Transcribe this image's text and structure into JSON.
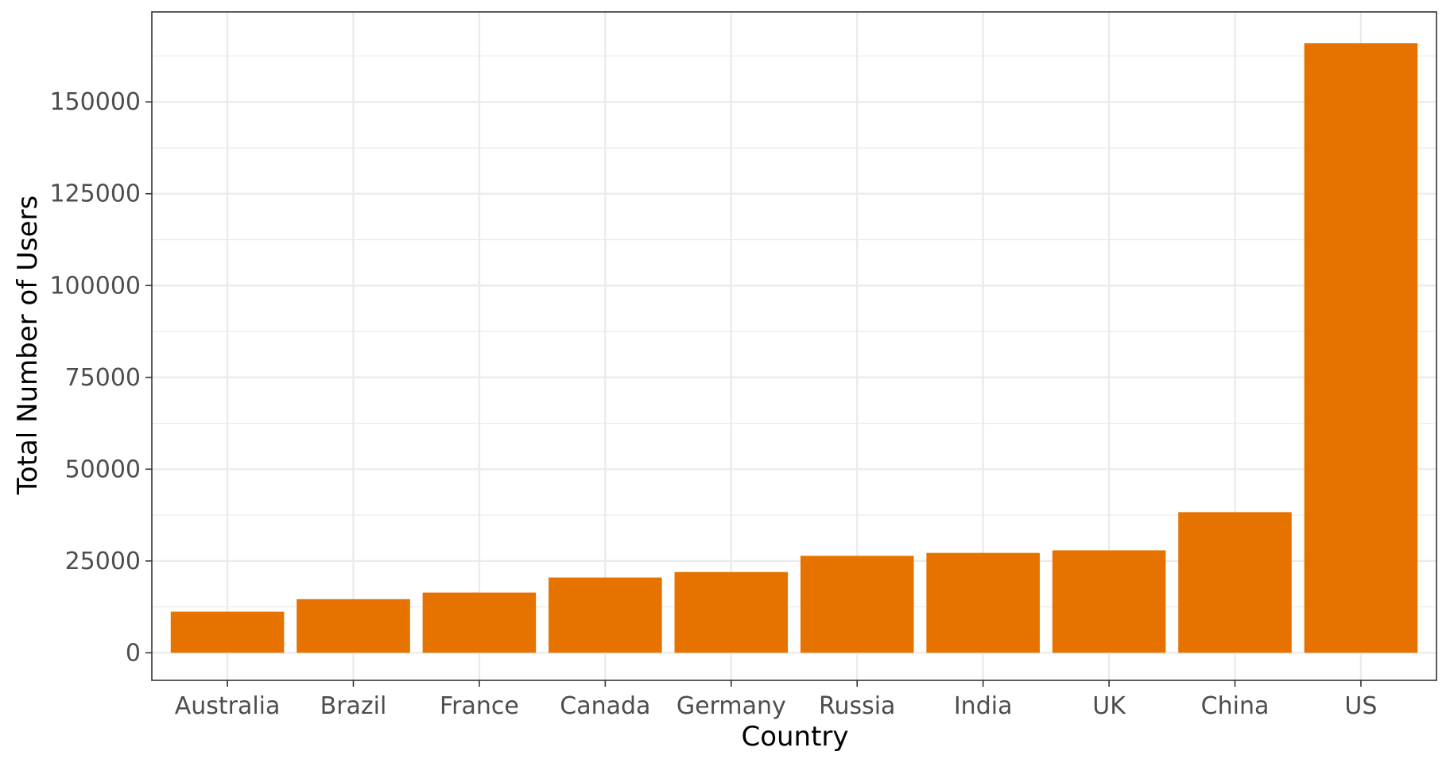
{
  "chart_data": {
    "type": "bar",
    "title": "",
    "xlabel": "Country",
    "ylabel": "Total Number of Users",
    "categories": [
      "Australia",
      "Brazil",
      "France",
      "Canada",
      "Germany",
      "Russia",
      "India",
      "UK",
      "China",
      "US"
    ],
    "values": [
      11200,
      14600,
      16400,
      20500,
      22000,
      26400,
      27200,
      27900,
      38300,
      166000
    ],
    "ylim": [
      -7500,
      174500
    ],
    "yticks": [
      0,
      25000,
      50000,
      75000,
      100000,
      125000,
      150000
    ],
    "ytick_labels": [
      "0",
      "25000",
      "50000",
      "75000",
      "100000",
      "125000",
      "150000"
    ],
    "grid": true,
    "legend": "none",
    "colors": {
      "bar": "#e67300",
      "grid": "#ebebeb",
      "panel_border": "#333333",
      "tick_text": "#4d4d4d"
    }
  }
}
